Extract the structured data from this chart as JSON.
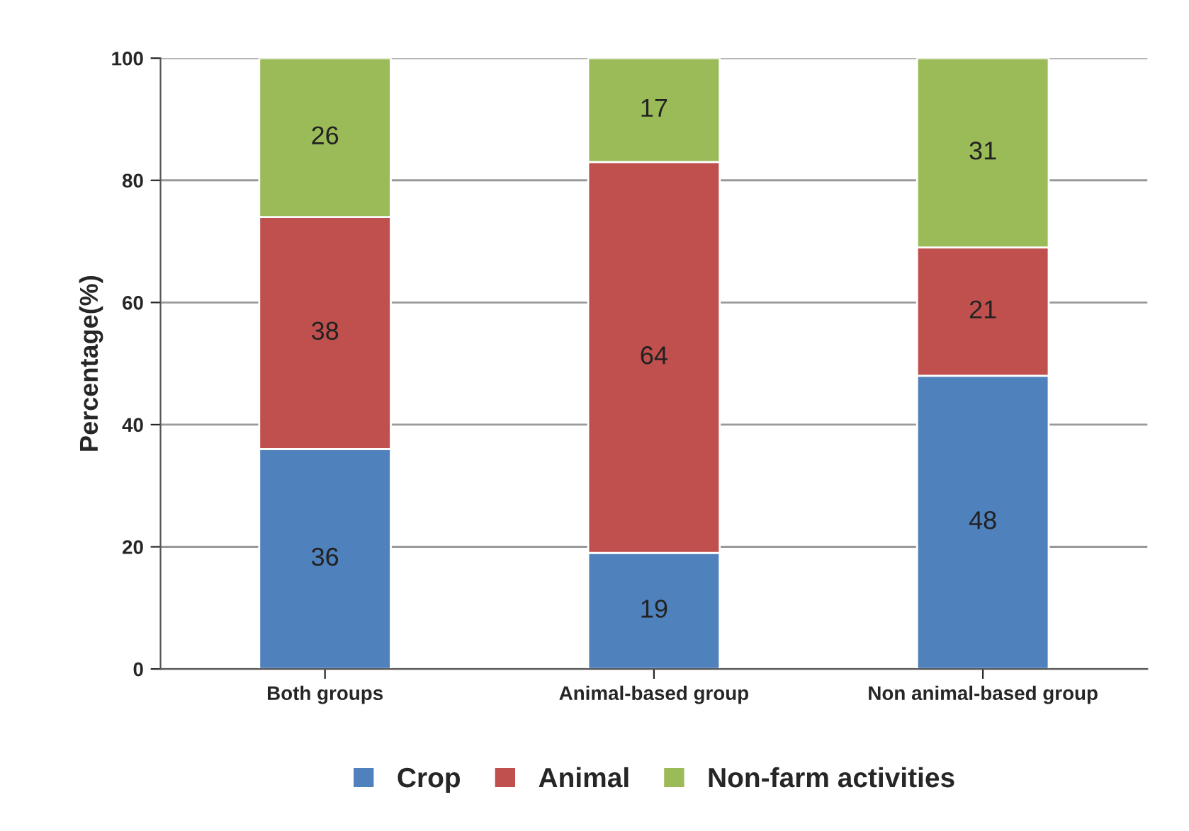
{
  "chart_data": {
    "type": "bar",
    "stacked": true,
    "ylabel": "Percentage(%)",
    "categories": [
      "Both groups",
      "Animal-based group",
      "Non animal-based group"
    ],
    "series": [
      {
        "name": "Crop",
        "color": "#4f81bd",
        "values": [
          36,
          19,
          48
        ]
      },
      {
        "name": "Animal",
        "color": "#c0504d",
        "values": [
          38,
          64,
          21
        ]
      },
      {
        "name": "Non-farm activities",
        "color": "#9bbb59",
        "values": [
          26,
          17,
          31
        ]
      }
    ],
    "ylim": [
      0,
      100
    ],
    "yticks": [
      0,
      20,
      40,
      60,
      80,
      100
    ],
    "grid": "y",
    "legend": "bottom",
    "data_labels": true
  }
}
